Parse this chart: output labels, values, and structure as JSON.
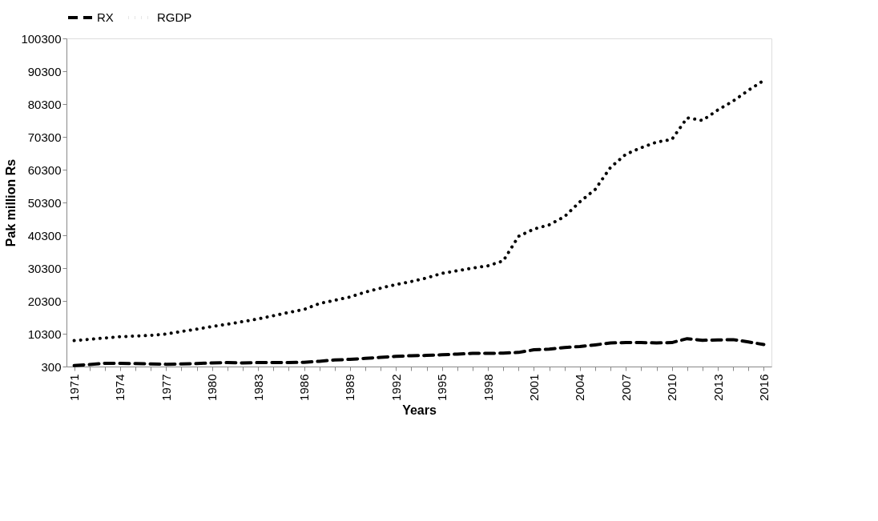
{
  "chart_data": {
    "type": "line",
    "xlabel": "Years",
    "ylabel": "Pak million Rs",
    "categories": [
      "1971",
      null,
      null,
      "1974",
      null,
      null,
      "1977",
      null,
      null,
      "1980",
      null,
      null,
      "1983",
      null,
      null,
      "1986",
      null,
      null,
      "1989",
      null,
      null,
      "1992",
      null,
      null,
      "1995",
      null,
      null,
      "1998",
      null,
      null,
      "2001",
      null,
      null,
      "2004",
      null,
      null,
      "2007",
      null,
      null,
      "2010",
      null,
      null,
      "2013",
      null,
      null,
      "2016"
    ],
    "series": [
      {
        "name": "RX",
        "color": "#000000",
        "line_style": "dashed",
        "values": [
          600,
          900,
          1300,
          1300,
          1200,
          1100,
          1000,
          1100,
          1200,
          1400,
          1500,
          1400,
          1500,
          1500,
          1500,
          1600,
          1900,
          2300,
          2500,
          2800,
          3100,
          3400,
          3600,
          3700,
          3900,
          4100,
          4300,
          4300,
          4400,
          4600,
          5400,
          5600,
          6100,
          6400,
          6900,
          7500,
          7600,
          7600,
          7500,
          7600,
          8800,
          8300,
          8400,
          8500,
          7800,
          7000
        ]
      },
      {
        "name": "RGDP",
        "color": "#000000",
        "line_style": "dotted",
        "values": [
          8200,
          8600,
          9000,
          9400,
          9600,
          9800,
          10200,
          11000,
          11700,
          12500,
          13200,
          14000,
          14800,
          15800,
          16800,
          17700,
          19500,
          20500,
          21500,
          23000,
          24200,
          25300,
          26200,
          27300,
          28700,
          29500,
          30300,
          31000,
          32500,
          40000,
          42200,
          43500,
          46000,
          50500,
          54300,
          61000,
          65000,
          67000,
          68700,
          69500,
          76100,
          75300,
          78500,
          81200,
          84500,
          87500
        ]
      }
    ],
    "ylim": [
      300,
      100300
    ],
    "yticks": [
      300,
      10300,
      20300,
      30300,
      40300,
      50300,
      60300,
      70300,
      80300,
      90300,
      100300
    ],
    "legend": "top",
    "grid": false
  }
}
